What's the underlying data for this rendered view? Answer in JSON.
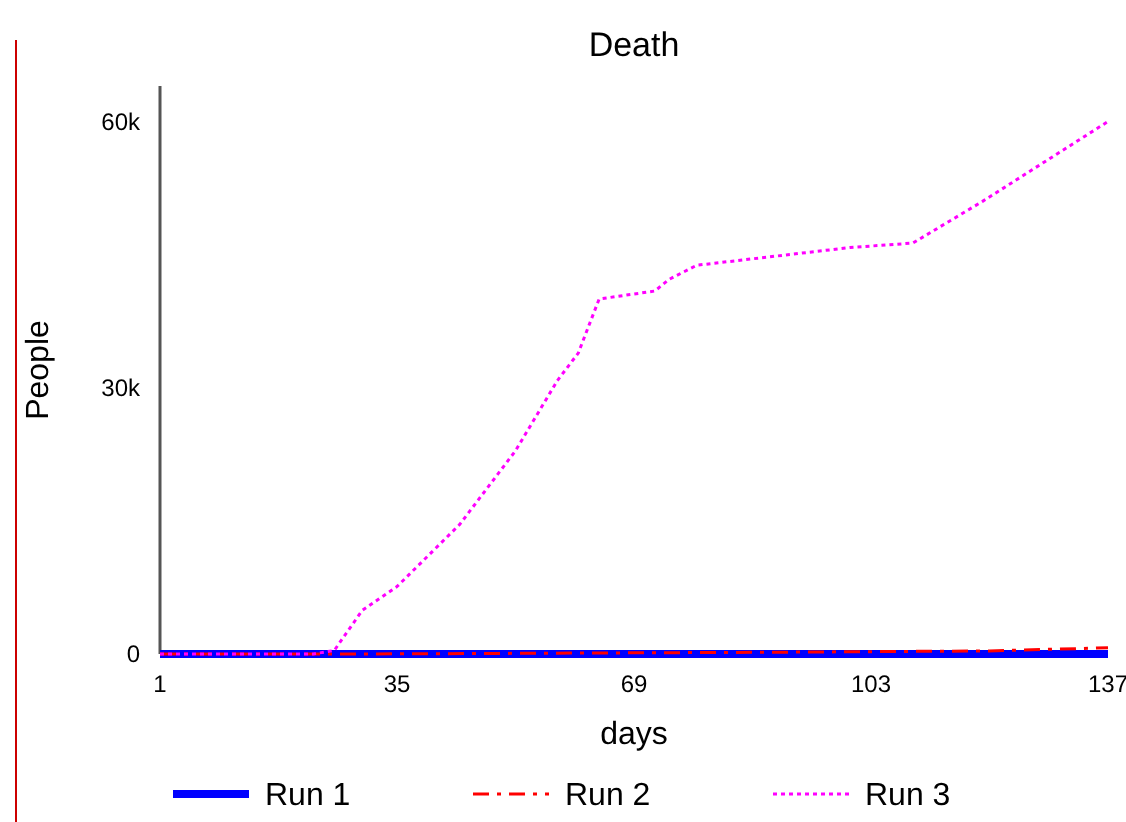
{
  "chart_data": {
    "type": "line",
    "title": "Death",
    "xlabel": "days",
    "ylabel": "People",
    "xlim": [
      1,
      137
    ],
    "xticks": [
      1,
      35,
      69,
      103,
      137
    ],
    "ylim": [
      0,
      64000
    ],
    "yticks": [
      {
        "value": 0,
        "label": "0"
      },
      {
        "value": 30000,
        "label": "30k"
      },
      {
        "value": 60000,
        "label": "60k"
      }
    ],
    "grid": false,
    "legend": "bottom",
    "series": [
      {
        "name": "Run 1",
        "color": "#0000ff",
        "line_style": "solid",
        "x": [
          1,
          137
        ],
        "values": [
          0,
          0
        ]
      },
      {
        "name": "Run 2",
        "color": "#ff0000",
        "line_style": "dashdot",
        "x": [
          1,
          30,
          60,
          90,
          120,
          137
        ],
        "values": [
          0,
          0,
          100,
          200,
          350,
          700
        ]
      },
      {
        "name": "Run 3",
        "color": "#ff00ff",
        "line_style": "dotted",
        "x": [
          1,
          23,
          26,
          30,
          35,
          44,
          52,
          58,
          61,
          64,
          72,
          74,
          78,
          100,
          109,
          119,
          137
        ],
        "values": [
          0,
          0,
          400,
          4900,
          7600,
          14600,
          22900,
          30800,
          33900,
          40000,
          40900,
          42200,
          43800,
          45800,
          46300,
          51000,
          60000
        ]
      }
    ]
  }
}
